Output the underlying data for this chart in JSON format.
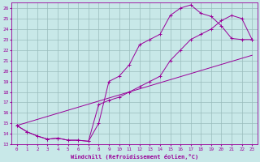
{
  "xlabel": "Windchill (Refroidissement éolien,°C)",
  "bg_color": "#c8e8e8",
  "grid_color": "#9abcbc",
  "line_color": "#990099",
  "xlim": [
    -0.5,
    23.5
  ],
  "ylim": [
    13,
    26.5
  ],
  "xticks": [
    0,
    1,
    2,
    3,
    4,
    5,
    6,
    7,
    8,
    9,
    10,
    11,
    12,
    13,
    14,
    15,
    16,
    17,
    18,
    19,
    20,
    21,
    22,
    23
  ],
  "yticks": [
    13,
    14,
    15,
    16,
    17,
    18,
    19,
    20,
    21,
    22,
    23,
    24,
    25,
    26
  ],
  "series1_x": [
    0,
    1,
    2,
    3,
    4,
    5,
    6,
    7,
    8,
    9,
    10,
    11,
    12,
    13,
    14,
    15,
    16,
    17,
    18,
    19,
    20,
    21,
    22,
    23
  ],
  "series1_y": [
    14.8,
    14.2,
    13.8,
    13.5,
    13.6,
    13.4,
    13.4,
    13.3,
    15.0,
    19.0,
    19.5,
    20.6,
    22.5,
    23.0,
    23.5,
    25.3,
    26.0,
    26.3,
    25.5,
    25.2,
    24.3,
    23.1,
    23.0,
    23.0
  ],
  "series2_x": [
    0,
    1,
    2,
    3,
    4,
    5,
    6,
    7,
    8,
    9,
    10,
    11,
    12,
    13,
    14,
    15,
    16,
    17,
    18,
    19,
    20,
    21,
    22,
    23
  ],
  "series2_y": [
    14.8,
    14.2,
    13.8,
    13.5,
    13.6,
    13.4,
    13.4,
    13.3,
    16.8,
    17.2,
    17.5,
    18.0,
    18.5,
    19.0,
    19.5,
    21.0,
    22.0,
    23.0,
    23.5,
    24.0,
    24.8,
    25.3,
    25.0,
    23.0
  ],
  "series3_x": [
    0,
    23
  ],
  "series3_y": [
    14.8,
    21.5
  ],
  "marker": "+"
}
